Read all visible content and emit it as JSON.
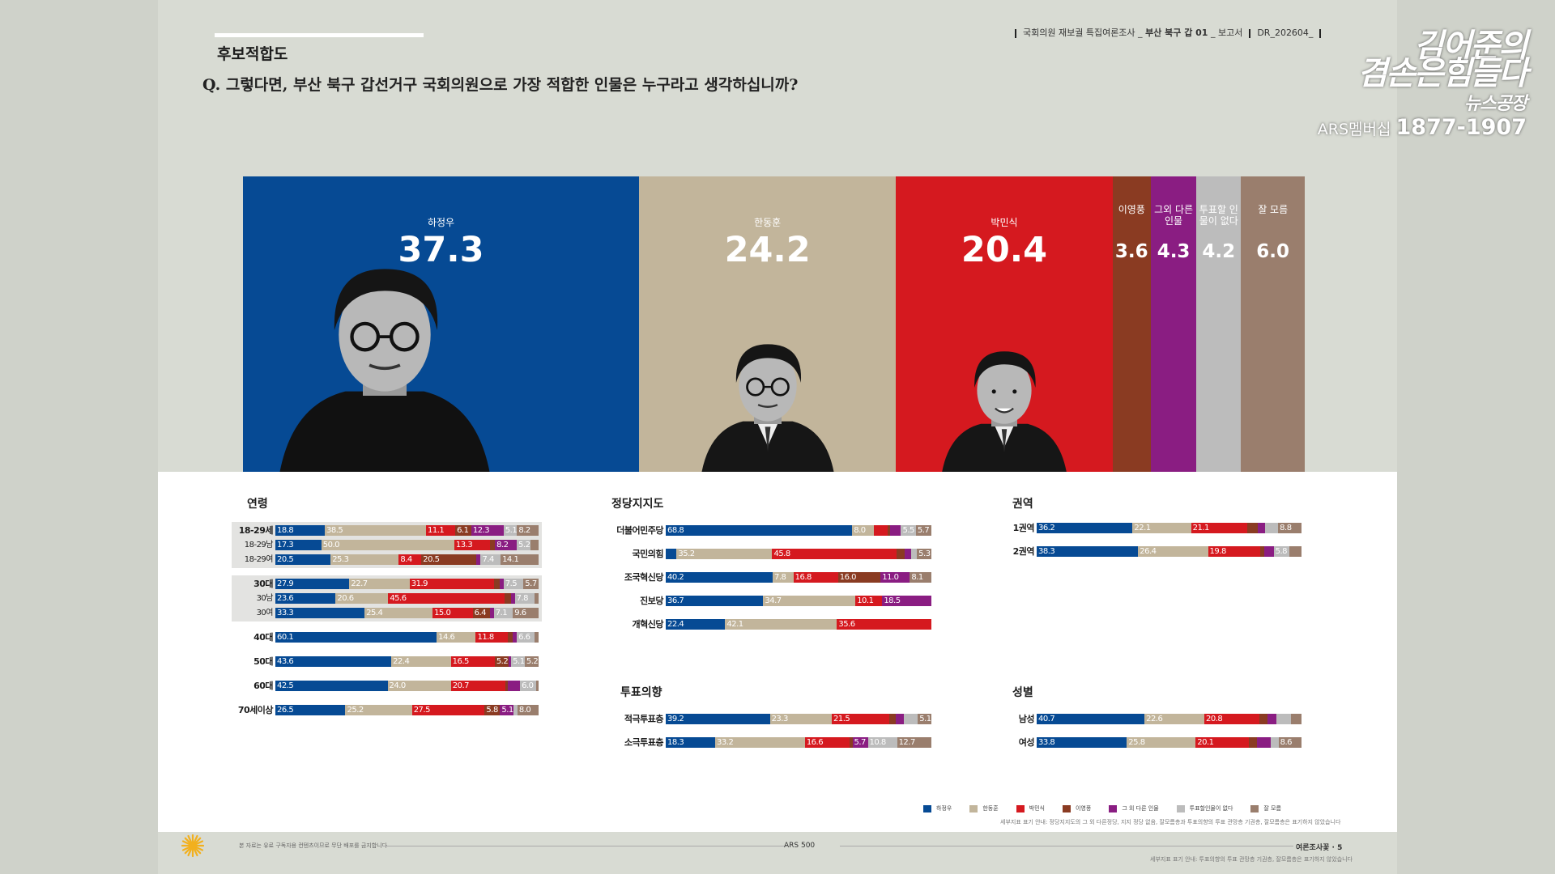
{
  "header": {
    "section_title": "후보적합도",
    "question": "Q. 그렇다면, 부산 북구 갑선거구 국회의원으로 가장 적합한 인물은 누구라고 생각하십니까?",
    "meta_prefix": "국회의원 재보궐 특집여론조사 _",
    "meta_bold": "부산 북구 갑 01",
    "meta_suffix": "_ 보고서",
    "doc_code": "DR_202604_"
  },
  "brand": {
    "line1": "김어준의",
    "line2": "겸손은힘들다",
    "line3": "뉴스공장",
    "membership_label": "ARS멤버십",
    "phone": "1877-1907"
  },
  "colors": {
    "ha": "#064a94",
    "han": "#c2b59b",
    "park": "#d5191f",
    "lee": "#8a3b22",
    "other": "#8a1d82",
    "none": "#bcbcbc",
    "dk": "#9a7e6d"
  },
  "chart_data": [
    {
      "type": "bar",
      "title": "후보적합도",
      "categories": [
        "하정우",
        "한동훈",
        "박민식",
        "이영풍",
        "그외 다른인물",
        "투표할 인물이 없다",
        "잘 모름"
      ],
      "values": [
        37.3,
        24.2,
        20.4,
        3.6,
        4.3,
        4.2,
        6.0
      ]
    },
    {
      "type": "bar",
      "title": "연령",
      "categories": [
        "18-29세",
        "18-29남",
        "18-29여",
        "30대",
        "30남",
        "30여",
        "40대",
        "50대",
        "60대",
        "70세이상"
      ],
      "series": [
        {
          "name": "하정우",
          "values": [
            18.8,
            17.3,
            20.5,
            27.9,
            23.6,
            33.3,
            60.1,
            43.6,
            42.5,
            26.5
          ]
        },
        {
          "name": "한동훈",
          "values": [
            38.5,
            50.0,
            25.3,
            22.7,
            20.6,
            25.4,
            14.6,
            22.4,
            24.0,
            25.2
          ]
        },
        {
          "name": "박민식",
          "values": [
            11.1,
            13.3,
            8.4,
            31.9,
            45.6,
            15.0,
            11.8,
            16.5,
            20.7,
            27.5
          ]
        },
        {
          "name": "이영풍",
          "values": [
            6.1,
            2.0,
            20.5,
            2.0,
            2.5,
            6.4,
            2.0,
            5.2,
            1.0,
            5.8
          ]
        },
        {
          "name": "그 외 다른 인물",
          "values": [
            12.3,
            8.2,
            1.5,
            1.5,
            1.5,
            1.5,
            1.5,
            1.0,
            4.5,
            5.1
          ]
        },
        {
          "name": "투표할인물이 없다",
          "values": [
            5.1,
            5.2,
            7.4,
            7.5,
            7.8,
            7.1,
            6.6,
            5.1,
            6.0,
            1.5
          ]
        },
        {
          "name": "잘 모름",
          "values": [
            8.2,
            3.0,
            14.1,
            5.7,
            1.5,
            9.6,
            1.5,
            5.2,
            1.0,
            8.0
          ]
        }
      ],
      "labels": [
        [
          "18.8",
          "38.5",
          "11.1",
          "6.1",
          "12.3",
          "5.1",
          "8.2"
        ],
        [
          "17.3",
          "50.0",
          "13.3",
          "",
          "8.2",
          "5.2",
          ""
        ],
        [
          "20.5",
          "25.3",
          "8.4",
          "20.5",
          "",
          "7.4",
          "14.1"
        ],
        [
          "27.9",
          "22.7",
          "31.9",
          "",
          "",
          "7.5",
          "5.7"
        ],
        [
          "23.6",
          "20.6",
          "45.6",
          "",
          "",
          "7.8",
          ""
        ],
        [
          "33.3",
          "25.4",
          "15.0",
          "6.4",
          "",
          "7.1",
          "9.6"
        ],
        [
          "60.1",
          "14.6",
          "11.8",
          "",
          "",
          "6.6",
          ""
        ],
        [
          "43.6",
          "22.4",
          "16.5",
          "5.2",
          "",
          "5.1",
          "5.2"
        ],
        [
          "42.5",
          "24.0",
          "20.7",
          "",
          "",
          "6.0",
          ""
        ],
        [
          "26.5",
          "25.2",
          "27.5",
          "5.8",
          "5.1",
          "",
          "8.0"
        ]
      ]
    },
    {
      "type": "bar",
      "title": "정당지지도",
      "categories": [
        "더불어민주당",
        "국민의힘",
        "조국혁신당",
        "진보당",
        "개혁신당"
      ],
      "series": [
        {
          "name": "하정우",
          "values": [
            68.8,
            4.0,
            40.2,
            36.7,
            22.4
          ]
        },
        {
          "name": "한동훈",
          "values": [
            8.0,
            35.2,
            7.8,
            34.7,
            42.1
          ]
        },
        {
          "name": "박민식",
          "values": [
            5.0,
            45.8,
            16.8,
            10.1,
            35.6
          ]
        },
        {
          "name": "이영풍",
          "values": [
            1.0,
            3.0,
            16.0,
            0.0,
            0.0
          ]
        },
        {
          "name": "그 외 다른 인물",
          "values": [
            4.0,
            2.5,
            11.0,
            18.5,
            0.0
          ]
        },
        {
          "name": "투표할인물이 없다",
          "values": [
            5.5,
            2.0,
            0.0,
            0.0,
            0.0
          ]
        },
        {
          "name": "잘 모름",
          "values": [
            5.7,
            5.3,
            8.1,
            0.0,
            0.0
          ]
        }
      ],
      "labels": [
        [
          "68.8",
          "8.0",
          "",
          "",
          "",
          "5.5",
          "5.7"
        ],
        [
          "",
          "35.2",
          "45.8",
          "",
          "",
          "",
          "5.3"
        ],
        [
          "40.2",
          "7.8",
          "16.8",
          "16.0",
          "11.0",
          "",
          "8.1"
        ],
        [
          "36.7",
          "34.7",
          "10.1",
          "",
          "18.5",
          "",
          ""
        ],
        [
          "22.4",
          "42.1",
          "35.6",
          "",
          "",
          "",
          ""
        ]
      ]
    },
    {
      "type": "bar",
      "title": "권역",
      "categories": [
        "1권역",
        "2권역"
      ],
      "series": [
        {
          "name": "하정우",
          "values": [
            36.2,
            38.3
          ]
        },
        {
          "name": "한동훈",
          "values": [
            22.1,
            26.4
          ]
        },
        {
          "name": "박민식",
          "values": [
            21.1,
            19.8
          ]
        },
        {
          "name": "이영풍",
          "values": [
            4.0,
            1.5
          ]
        },
        {
          "name": "그 외 다른 인물",
          "values": [
            3.0,
            3.5
          ]
        },
        {
          "name": "투표할인물이 없다",
          "values": [
            4.8,
            5.8
          ]
        },
        {
          "name": "잘 모름",
          "values": [
            8.8,
            4.7
          ]
        }
      ],
      "labels": [
        [
          "36.2",
          "22.1",
          "21.1",
          "",
          "",
          "",
          "8.8"
        ],
        [
          "38.3",
          "26.4",
          "19.8",
          "",
          "",
          "5.8",
          ""
        ]
      ]
    },
    {
      "type": "bar",
      "title": "투표의향",
      "categories": [
        "적극투표층",
        "소극투표층"
      ],
      "series": [
        {
          "name": "하정우",
          "values": [
            39.2,
            18.3
          ]
        },
        {
          "name": "한동훈",
          "values": [
            23.3,
            33.2
          ]
        },
        {
          "name": "박민식",
          "values": [
            21.5,
            16.6
          ]
        },
        {
          "name": "이영풍",
          "values": [
            2.5,
            1.0
          ]
        },
        {
          "name": "그 외 다른 인물",
          "values": [
            3.0,
            5.7
          ]
        },
        {
          "name": "투표할인물이 없다",
          "values": [
            5.4,
            10.8
          ]
        },
        {
          "name": "잘 모름",
          "values": [
            5.1,
            12.7
          ]
        }
      ],
      "labels": [
        [
          "39.2",
          "23.3",
          "21.5",
          "",
          "",
          "",
          "5.1"
        ],
        [
          "18.3",
          "33.2",
          "16.6",
          "",
          "5.7",
          "10.8",
          "12.7"
        ]
      ]
    },
    {
      "type": "bar",
      "title": "성별",
      "categories": [
        "남성",
        "여성"
      ],
      "series": [
        {
          "name": "하정우",
          "values": [
            40.7,
            33.8
          ]
        },
        {
          "name": "한동훈",
          "values": [
            22.6,
            25.8
          ]
        },
        {
          "name": "박민식",
          "values": [
            20.8,
            20.1
          ]
        },
        {
          "name": "이영풍",
          "values": [
            3.0,
            3.0
          ]
        },
        {
          "name": "그 외 다른 인물",
          "values": [
            3.5,
            5.0
          ]
        },
        {
          "name": "투표할인물이 없다",
          "values": [
            5.5,
            3.0
          ]
        },
        {
          "name": "잘 모름",
          "values": [
            3.9,
            8.6
          ]
        }
      ],
      "labels": [
        [
          "40.7",
          "22.6",
          "20.8",
          "",
          "",
          "",
          ""
        ],
        [
          "33.8",
          "25.8",
          "20.1",
          "",
          "",
          "",
          "8.6"
        ]
      ]
    }
  ],
  "legend": [
    "하정우",
    "한동훈",
    "박민식",
    "이영풍",
    "그 외 다른 인물",
    "투표할인물이 없다",
    "잘 모름"
  ],
  "notes": {
    "legend_note": "세부지표 표기 안내: 정당지지도의 그 외 다른정당, 지지 정당 없음, 잘모름층과 투표의향의 투표 관망층 기권층, 잘모름층은 표기하지 않았습니다",
    "footer_left": "본 자료는 유료 구독자용 컨텐츠이므로 무단 배포를 금지합니다",
    "footer_center": "ARS 500",
    "footer_right": "여론조사꽃",
    "page_no": "5",
    "footer_note": "세부지표 표기 안내: 투표의향의 투표 관망층 기권층, 잘모름층은 표기하지 않았습니다"
  }
}
